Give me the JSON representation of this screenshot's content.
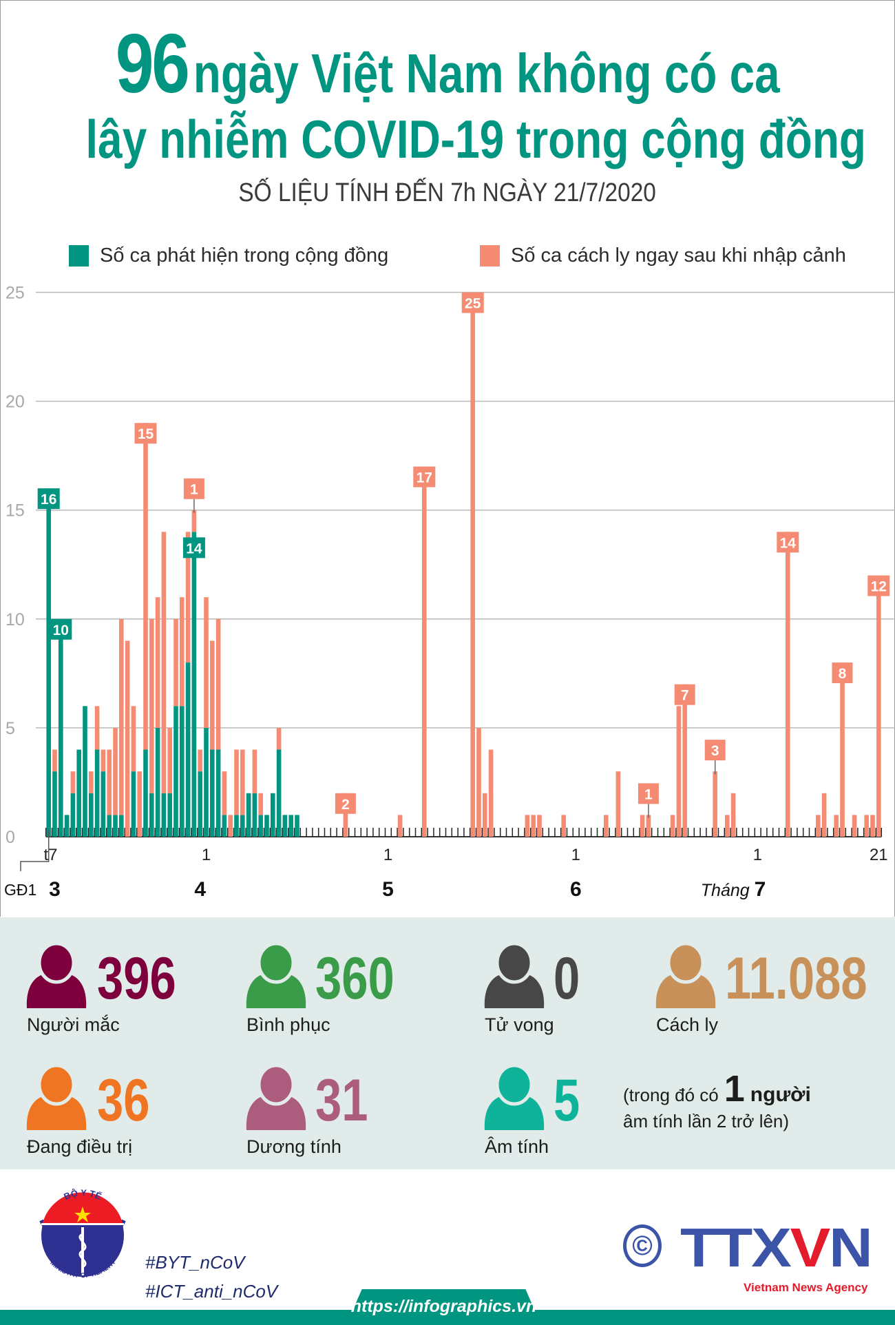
{
  "header": {
    "title_number": "96",
    "title_line1": "ngày Việt Nam không có ca",
    "title_line2": "lây nhiễm COVID-19 trong cộng đồng",
    "subtitle": "SỐ LIỆU TÍNH ĐẾN 7h NGÀY 21/7/2020"
  },
  "chart_data": {
    "type": "bar",
    "stacked": true,
    "grid": true,
    "legend_position": "top",
    "xlim": [
      "2020-03-06",
      "2020-07-21"
    ],
    "ylim": [
      0,
      25
    ],
    "y_ticks": [
      "0",
      "5",
      "10",
      "15",
      "20",
      "25"
    ],
    "series": [
      {
        "key": "community",
        "name": "Số ca phát hiện trong cộng đồng",
        "color": "#009581"
      },
      {
        "key": "imported",
        "name": "Số ca cách ly ngay sau khi nhập cảnh",
        "color": "#f48b72"
      }
    ],
    "points": [
      {
        "date": "2020-03-06",
        "community": 16,
        "imported": 0
      },
      {
        "date": "2020-03-07",
        "community": 3,
        "imported": 1
      },
      {
        "date": "2020-03-08",
        "community": 10,
        "imported": 0
      },
      {
        "date": "2020-03-09",
        "community": 1,
        "imported": 0
      },
      {
        "date": "2020-03-10",
        "community": 2,
        "imported": 1
      },
      {
        "date": "2020-03-11",
        "community": 4,
        "imported": 0
      },
      {
        "date": "2020-03-12",
        "community": 6,
        "imported": 0
      },
      {
        "date": "2020-03-13",
        "community": 2,
        "imported": 1
      },
      {
        "date": "2020-03-14",
        "community": 4,
        "imported": 2
      },
      {
        "date": "2020-03-15",
        "community": 3,
        "imported": 1
      },
      {
        "date": "2020-03-16",
        "community": 1,
        "imported": 3
      },
      {
        "date": "2020-03-17",
        "community": 1,
        "imported": 4
      },
      {
        "date": "2020-03-18",
        "community": 1,
        "imported": 9
      },
      {
        "date": "2020-03-19",
        "community": 0,
        "imported": 9
      },
      {
        "date": "2020-03-20",
        "community": 3,
        "imported": 3
      },
      {
        "date": "2020-03-21",
        "community": 0,
        "imported": 3
      },
      {
        "date": "2020-03-22",
        "community": 4,
        "imported": 15
      },
      {
        "date": "2020-03-23",
        "community": 2,
        "imported": 8
      },
      {
        "date": "2020-03-24",
        "community": 5,
        "imported": 6
      },
      {
        "date": "2020-03-25",
        "community": 2,
        "imported": 12
      },
      {
        "date": "2020-03-26",
        "community": 2,
        "imported": 3
      },
      {
        "date": "2020-03-27",
        "community": 6,
        "imported": 4
      },
      {
        "date": "2020-03-28",
        "community": 6,
        "imported": 5
      },
      {
        "date": "2020-03-29",
        "community": 8,
        "imported": 6
      },
      {
        "date": "2020-03-30",
        "community": 14,
        "imported": 1
      },
      {
        "date": "2020-03-31",
        "community": 3,
        "imported": 1
      },
      {
        "date": "2020-04-01",
        "community": 5,
        "imported": 6
      },
      {
        "date": "2020-04-02",
        "community": 4,
        "imported": 5
      },
      {
        "date": "2020-04-03",
        "community": 4,
        "imported": 6
      },
      {
        "date": "2020-04-04",
        "community": 1,
        "imported": 2
      },
      {
        "date": "2020-04-05",
        "community": 0,
        "imported": 1
      },
      {
        "date": "2020-04-06",
        "community": 1,
        "imported": 3
      },
      {
        "date": "2020-04-07",
        "community": 1,
        "imported": 3
      },
      {
        "date": "2020-04-08",
        "community": 2,
        "imported": 0
      },
      {
        "date": "2020-04-09",
        "community": 2,
        "imported": 2
      },
      {
        "date": "2020-04-10",
        "community": 1,
        "imported": 1
      },
      {
        "date": "2020-04-11",
        "community": 1,
        "imported": 0
      },
      {
        "date": "2020-04-12",
        "community": 2,
        "imported": 0
      },
      {
        "date": "2020-04-13",
        "community": 4,
        "imported": 1
      },
      {
        "date": "2020-04-14",
        "community": 1,
        "imported": 0
      },
      {
        "date": "2020-04-15",
        "community": 1,
        "imported": 0
      },
      {
        "date": "2020-04-16",
        "community": 1,
        "imported": 0
      },
      {
        "date": "2020-04-24",
        "community": 0,
        "imported": 2
      },
      {
        "date": "2020-05-03",
        "community": 0,
        "imported": 1
      },
      {
        "date": "2020-05-07",
        "community": 0,
        "imported": 17
      },
      {
        "date": "2020-05-15",
        "community": 0,
        "imported": 25
      },
      {
        "date": "2020-05-16",
        "community": 0,
        "imported": 5
      },
      {
        "date": "2020-05-17",
        "community": 0,
        "imported": 2
      },
      {
        "date": "2020-05-18",
        "community": 0,
        "imported": 4
      },
      {
        "date": "2020-05-24",
        "community": 0,
        "imported": 1
      },
      {
        "date": "2020-05-25",
        "community": 0,
        "imported": 1
      },
      {
        "date": "2020-05-26",
        "community": 0,
        "imported": 1
      },
      {
        "date": "2020-05-30",
        "community": 0,
        "imported": 1
      },
      {
        "date": "2020-06-06",
        "community": 0,
        "imported": 1
      },
      {
        "date": "2020-06-08",
        "community": 0,
        "imported": 3
      },
      {
        "date": "2020-06-12",
        "community": 0,
        "imported": 1
      },
      {
        "date": "2020-06-13",
        "community": 0,
        "imported": 1
      },
      {
        "date": "2020-06-17",
        "community": 0,
        "imported": 1
      },
      {
        "date": "2020-06-18",
        "community": 0,
        "imported": 6
      },
      {
        "date": "2020-06-19",
        "community": 0,
        "imported": 7
      },
      {
        "date": "2020-06-24",
        "community": 0,
        "imported": 3
      },
      {
        "date": "2020-06-26",
        "community": 0,
        "imported": 1
      },
      {
        "date": "2020-06-27",
        "community": 0,
        "imported": 2
      },
      {
        "date": "2020-07-06",
        "community": 0,
        "imported": 14
      },
      {
        "date": "2020-07-11",
        "community": 0,
        "imported": 1
      },
      {
        "date": "2020-07-12",
        "community": 0,
        "imported": 2
      },
      {
        "date": "2020-07-14",
        "community": 0,
        "imported": 1
      },
      {
        "date": "2020-07-15",
        "community": 0,
        "imported": 8
      },
      {
        "date": "2020-07-17",
        "community": 0,
        "imported": 1
      },
      {
        "date": "2020-07-19",
        "community": 0,
        "imported": 1
      },
      {
        "date": "2020-07-20",
        "community": 0,
        "imported": 1
      },
      {
        "date": "2020-07-21",
        "community": 0,
        "imported": 12
      }
    ],
    "annotations": [
      {
        "date": "2020-03-06",
        "series": "community",
        "text": "16"
      },
      {
        "date": "2020-03-08",
        "series": "community",
        "text": "10"
      },
      {
        "date": "2020-03-22",
        "series": "imported",
        "text": "15"
      },
      {
        "date": "2020-03-30",
        "series": "community",
        "text": "14"
      },
      {
        "date": "2020-03-30",
        "series": "imported",
        "text": "1",
        "leader": true
      },
      {
        "date": "2020-04-24",
        "series": "imported",
        "text": "2"
      },
      {
        "date": "2020-05-07",
        "series": "imported",
        "text": "17"
      },
      {
        "date": "2020-05-15",
        "series": "imported",
        "text": "25"
      },
      {
        "date": "2020-06-13",
        "series": "imported",
        "text": "1",
        "leader": true
      },
      {
        "date": "2020-06-19",
        "series": "imported",
        "text": "7"
      },
      {
        "date": "2020-06-24",
        "series": "imported",
        "text": "3",
        "leader": true
      },
      {
        "date": "2020-07-06",
        "series": "imported",
        "text": "14"
      },
      {
        "date": "2020-07-15",
        "series": "imported",
        "text": "8"
      },
      {
        "date": "2020-07-21",
        "series": "imported",
        "text": "12"
      }
    ],
    "x_tick_labels": [
      {
        "date": "2020-03-07",
        "text": "t7"
      },
      {
        "date": "2020-04-01",
        "text": "1"
      },
      {
        "date": "2020-05-01",
        "text": "1"
      },
      {
        "date": "2020-06-01",
        "text": "1"
      },
      {
        "date": "2020-07-01",
        "text": "1"
      },
      {
        "date": "2020-07-21",
        "text": "21"
      }
    ],
    "month_labels": [
      {
        "date": "2020-03-07",
        "prefix": "",
        "text": "3"
      },
      {
        "date": "2020-03-31",
        "prefix": "",
        "text": "4"
      },
      {
        "date": "2020-05-01",
        "prefix": "",
        "text": "5"
      },
      {
        "date": "2020-06-01",
        "prefix": "",
        "text": "6"
      },
      {
        "date": "2020-07-01",
        "prefix": "Tháng ",
        "text": "7"
      }
    ],
    "phase_label": {
      "date": "2020-03-06",
      "text": "GĐ1"
    }
  },
  "stats": [
    {
      "value": "396",
      "label": "Người mắc",
      "color": "#7d003c"
    },
    {
      "value": "360",
      "label": "Bình phục",
      "color": "#3a9b48"
    },
    {
      "value": "0",
      "label": "Tử vong",
      "color": "#474747"
    },
    {
      "value": "11.088",
      "label": "Cách ly",
      "color": "#c8915a"
    },
    {
      "value": "36",
      "label": "Đang điều trị",
      "color": "#f07522"
    },
    {
      "value": "31",
      "label": "Dương tính",
      "color": "#ac5d7e"
    },
    {
      "value": "5",
      "label": "Âm tính",
      "color": "#0fb39a"
    }
  ],
  "note": {
    "pre": "(trong đó có",
    "count": "1",
    "unit": "người",
    "line2": "âm tính lần 2 trở lên)"
  },
  "footer": {
    "moh_logo_top": "BỘ Y TẾ",
    "moh_logo_bottom": "MINISTRY OF HEALTH",
    "hashtags": [
      "#BYT_nCoV",
      "#ICT_anti_nCoV"
    ],
    "copyright_symbol": "©",
    "agency_logo": "TTXVN",
    "agency_name": "Vietnam News Agency",
    "url": "https://infographics.vn"
  }
}
